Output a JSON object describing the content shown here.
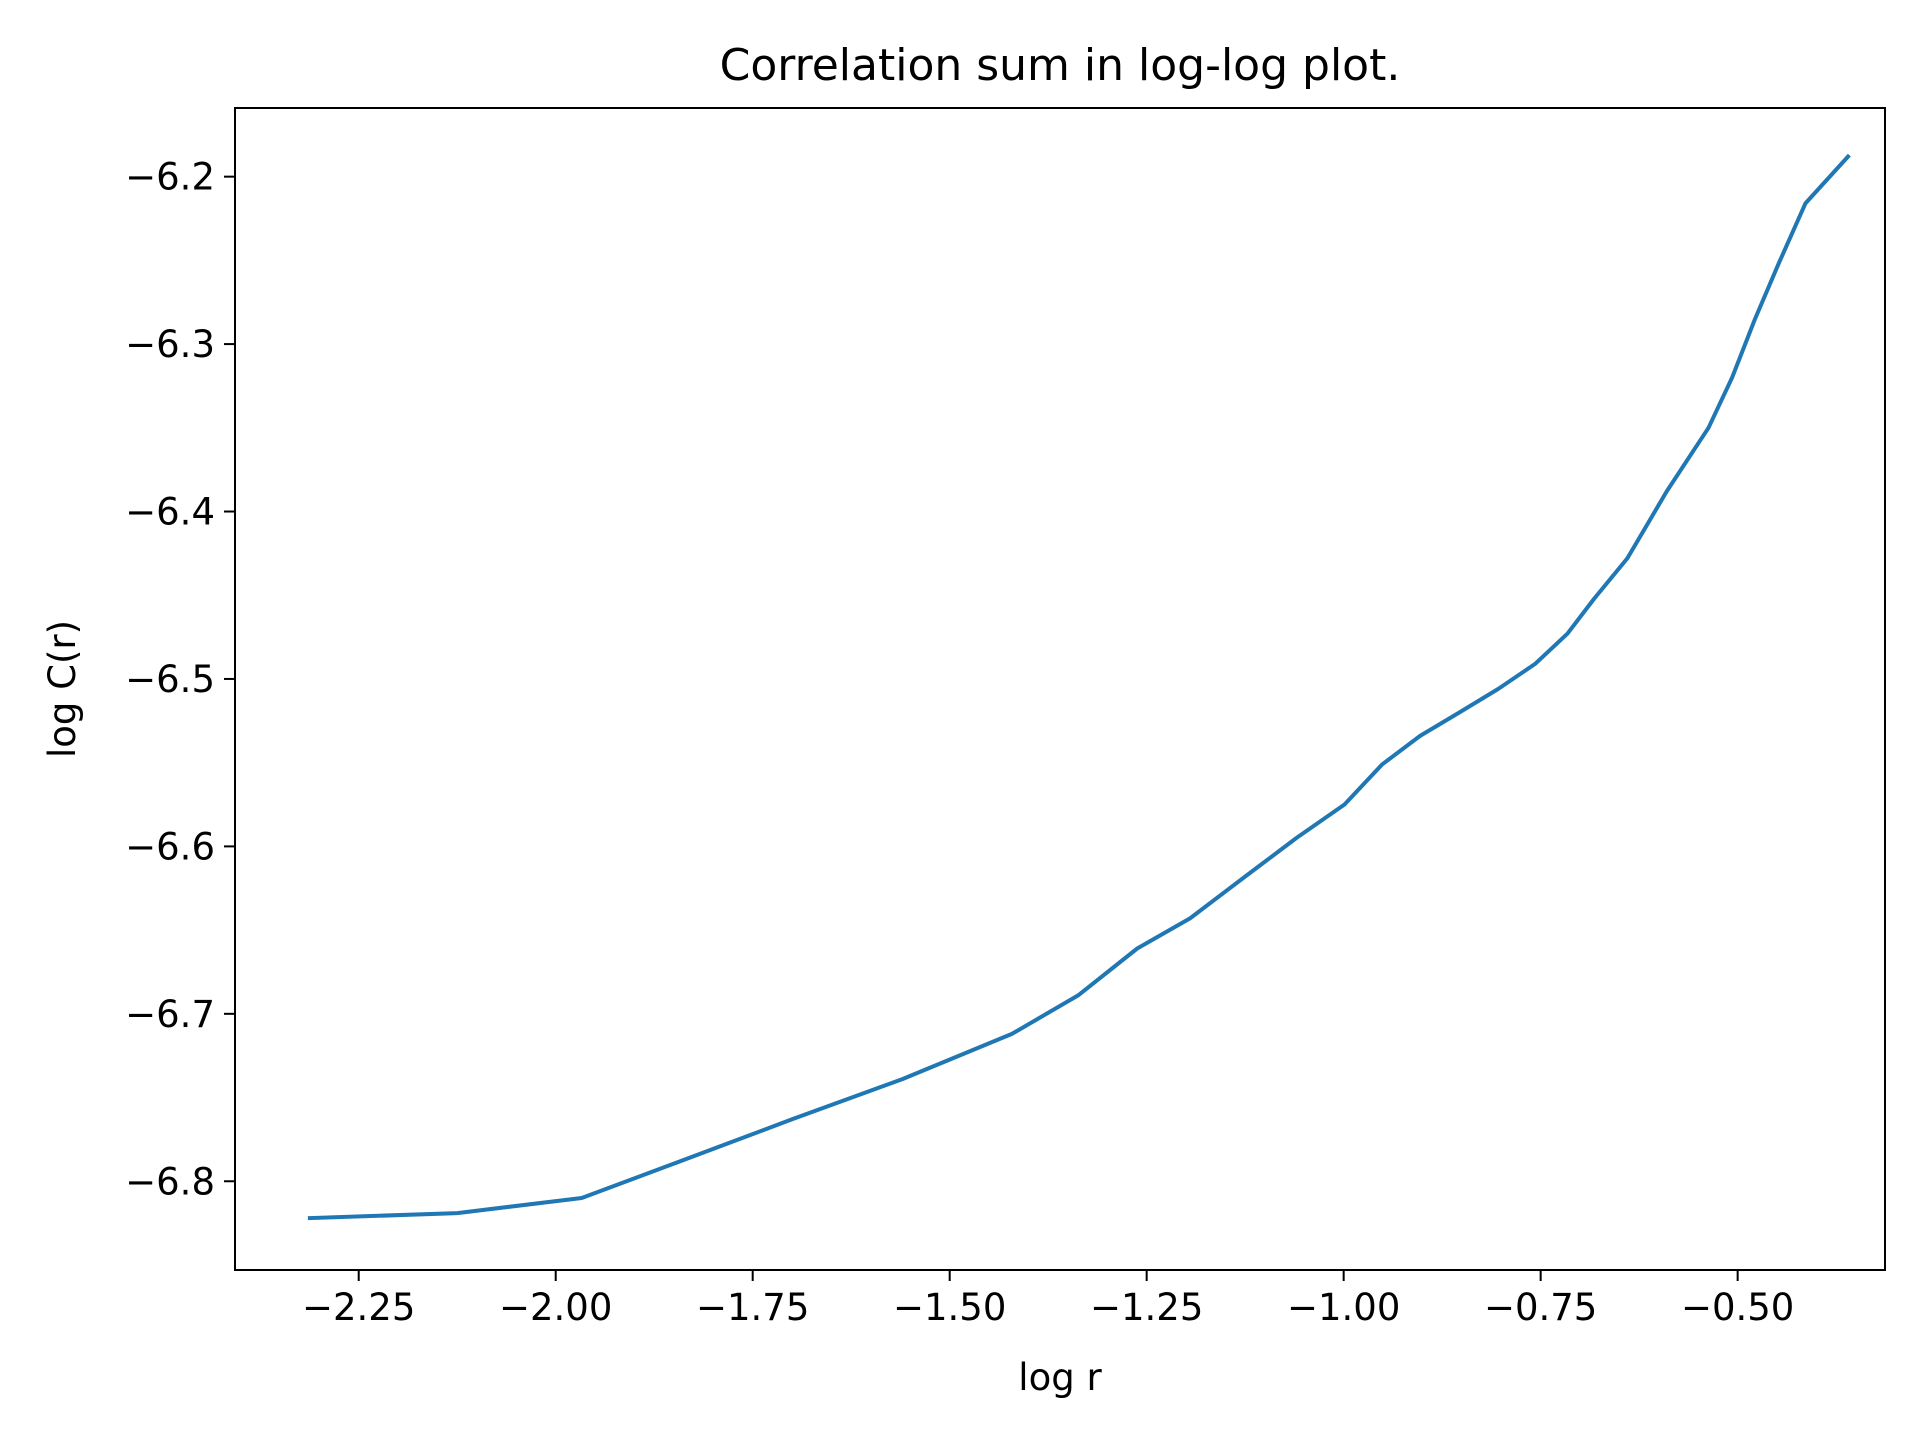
{
  "chart_data": {
    "type": "line",
    "title": "Correlation sum in log-log plot.",
    "xlabel": "log r",
    "ylabel": "log C(r)",
    "xlim": [
      -2.407,
      -0.313
    ],
    "ylim": [
      -6.853,
      -6.159
    ],
    "grid": false,
    "xticks": [
      {
        "value": -2.25,
        "label": "−2.25"
      },
      {
        "value": -2.0,
        "label": "−2.00"
      },
      {
        "value": -1.75,
        "label": "−1.75"
      },
      {
        "value": -1.5,
        "label": "−1.50"
      },
      {
        "value": -1.25,
        "label": "−1.25"
      },
      {
        "value": -1.0,
        "label": "−1.00"
      },
      {
        "value": -0.75,
        "label": "−0.75"
      },
      {
        "value": -0.5,
        "label": "−0.50"
      }
    ],
    "yticks": [
      {
        "value": -6.8,
        "label": "−6.8"
      },
      {
        "value": -6.7,
        "label": "−6.7"
      },
      {
        "value": -6.6,
        "label": "−6.6"
      },
      {
        "value": -6.5,
        "label": "−6.5"
      },
      {
        "value": -6.4,
        "label": "−6.4"
      },
      {
        "value": -6.3,
        "label": "−6.3"
      },
      {
        "value": -6.2,
        "label": "−6.2"
      }
    ],
    "series": [
      {
        "color": "#1f77b4",
        "x": [
          -2.312,
          -2.125,
          -1.967,
          -1.836,
          -1.7,
          -1.56,
          -1.421,
          -1.337,
          -1.262,
          -1.195,
          -1.125,
          -1.06,
          -0.999,
          -0.951,
          -0.903,
          -0.853,
          -0.804,
          -0.757,
          -0.716,
          -0.682,
          -0.64,
          -0.59,
          -0.537,
          -0.507,
          -0.478,
          -0.448,
          -0.414,
          -0.36
        ],
        "y": [
          -6.822,
          -6.819,
          -6.81,
          -6.787,
          -6.763,
          -6.739,
          -6.712,
          -6.689,
          -6.661,
          -6.643,
          -6.618,
          -6.595,
          -6.575,
          -6.551,
          -6.534,
          -6.52,
          -6.506,
          -6.491,
          -6.473,
          -6.452,
          -6.428,
          -6.388,
          -6.35,
          -6.32,
          -6.285,
          -6.252,
          -6.216,
          -6.188
        ]
      }
    ]
  }
}
